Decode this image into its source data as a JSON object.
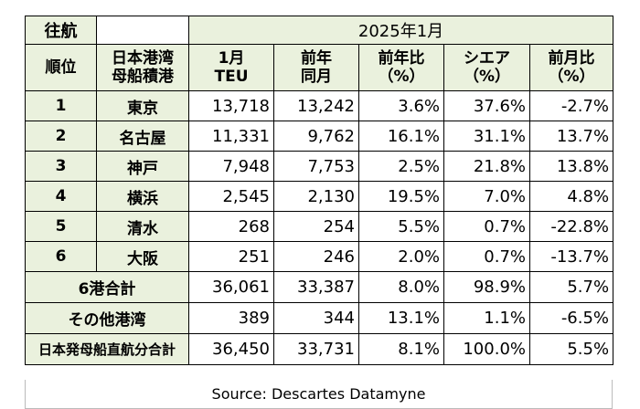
{
  "header": {
    "direction": "往航",
    "period": "2025年1月"
  },
  "columns": {
    "rank": "順位",
    "port_line1": "日本港湾",
    "port_line2": "母船積港",
    "teu_line1": "1月",
    "teu_line2": "TEU",
    "prev_line1": "前年",
    "prev_line2": "同月",
    "yoy_line1": "前年比",
    "yoy_line2": "（%）",
    "share_line1": "シエア",
    "share_line2": "（%）",
    "mom_line1": "前月比",
    "mom_line2": "（%）"
  },
  "rows": [
    {
      "rank": "1",
      "port": "東京",
      "teu": "13,718",
      "prev": "13,242",
      "yoy": "3.6%",
      "share": "37.6%",
      "mom": "-2.7%"
    },
    {
      "rank": "2",
      "port": "名古屋",
      "teu": "11,331",
      "prev": "9,762",
      "yoy": "16.1%",
      "share": "31.1%",
      "mom": "13.7%"
    },
    {
      "rank": "3",
      "port": "神戸",
      "teu": "7,948",
      "prev": "7,753",
      "yoy": "2.5%",
      "share": "21.8%",
      "mom": "13.8%"
    },
    {
      "rank": "4",
      "port": "横浜",
      "teu": "2,545",
      "prev": "2,130",
      "yoy": "19.5%",
      "share": "7.0%",
      "mom": "4.8%"
    },
    {
      "rank": "5",
      "port": "清水",
      "teu": "268",
      "prev": "254",
      "yoy": "5.5%",
      "share": "0.7%",
      "mom": "-22.8%"
    },
    {
      "rank": "6",
      "port": "大阪",
      "teu": "251",
      "prev": "246",
      "yoy": "2.0%",
      "share": "0.7%",
      "mom": "-13.7%"
    }
  ],
  "summary": [
    {
      "label": "6港合計",
      "teu": "36,061",
      "prev": "33,387",
      "yoy": "8.0%",
      "share": "98.9%",
      "mom": "5.7%"
    },
    {
      "label": "その他港湾",
      "teu": "389",
      "prev": "344",
      "yoy": "13.1%",
      "share": "1.1%",
      "mom": "-6.5%"
    },
    {
      "label": "日本発母船直航分合計",
      "teu": "36,450",
      "prev": "33,731",
      "yoy": "8.1%",
      "share": "100.0%",
      "mom": "5.5%"
    }
  ],
  "source": "Source:  Descartes Datamyne",
  "colors": {
    "header_fill": "#eaf1dd",
    "border": "#000000"
  }
}
